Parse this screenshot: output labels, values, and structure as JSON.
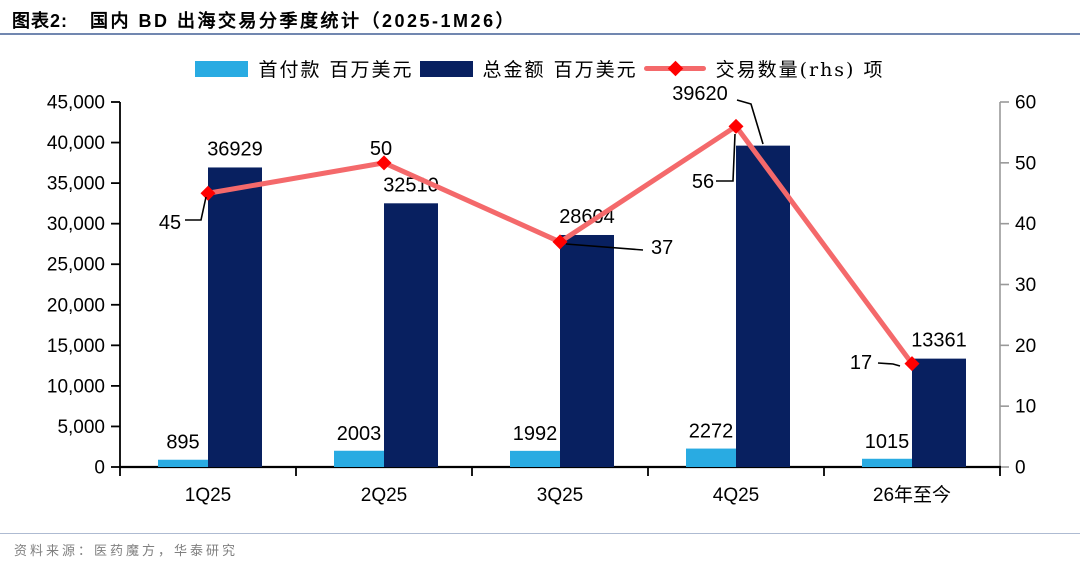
{
  "header": {
    "figure_label": "图表2:",
    "title": "国内 BD 出海交易分季度统计（2025-1M26）"
  },
  "footer": {
    "source": "资料来源：医药魔方，华泰研究"
  },
  "colors": {
    "downpayment_bar": "#29ABE2",
    "total_bar": "#082060",
    "deal_line": "#F4696B",
    "deal_marker": "#FF0000",
    "axis_primary": "#000000",
    "axis_secondary": "#999999",
    "title_rule": "#7187B0"
  },
  "chart_data": {
    "type": "combo",
    "title": "国内 BD 出海交易分季度统计（2025-1M26）",
    "categories": [
      "1Q25",
      "2Q25",
      "3Q25",
      "4Q25",
      "26年至今"
    ],
    "series": [
      {
        "name": "首付款 百万美元",
        "type": "bar",
        "axis": "left",
        "color": "#29ABE2",
        "values": [
          895,
          2003,
          1992,
          2272,
          1015
        ]
      },
      {
        "name": "总金额 百万美元",
        "type": "bar",
        "axis": "left",
        "color": "#082060",
        "values": [
          36929,
          32510,
          28604,
          39620,
          13361
        ]
      },
      {
        "name": "交易数量(rhs) 项",
        "type": "line",
        "axis": "right",
        "color": "#F4696B",
        "marker": "diamond",
        "marker_color": "#FF0000",
        "values": [
          45,
          50,
          37,
          56,
          17
        ]
      }
    ],
    "left_axis": {
      "min": 0,
      "max": 45000,
      "tick_step": 5000,
      "tick_labels": [
        "0",
        "5,000",
        "10,000",
        "15,000",
        "20,000",
        "25,000",
        "30,000",
        "35,000",
        "40,000",
        "45,000"
      ]
    },
    "right_axis": {
      "min": 0,
      "max": 60,
      "tick_step": 10,
      "tick_labels": [
        "0",
        "10",
        "20",
        "30",
        "40",
        "50",
        "60"
      ]
    },
    "grid": false,
    "legend_position": "top",
    "data_labels": true
  }
}
